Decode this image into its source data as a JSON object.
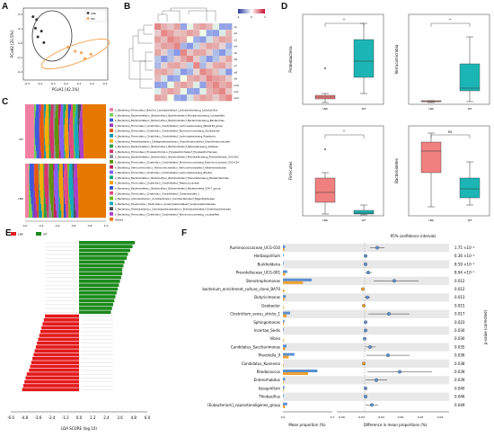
{
  "panels": {
    "a": "A",
    "b": "B",
    "c": "C",
    "d": "D",
    "e": "E",
    "f": "F"
  },
  "panel_a": {
    "xlabel": "PCoA1 [42.1%]",
    "ylabel": "PCoA2 [20.5%]",
    "legend": [
      "LNK",
      "WT"
    ],
    "xticks": [
      "-0.3",
      "-0.2",
      "-0.1",
      "0.0",
      "0.1",
      "0.2",
      "0.3"
    ],
    "yticks": [
      "0.2",
      "0.1",
      "0.0",
      "-0.1",
      "-0.2"
    ],
    "lnk_points": [
      [
        -0.27,
        0.19
      ],
      [
        -0.24,
        0.17
      ],
      [
        -0.25,
        0.11
      ],
      [
        -0.2,
        0.09
      ],
      [
        -0.23,
        0.05
      ],
      [
        -0.18,
        0.01
      ]
    ],
    "wt_points": [
      [
        0.02,
        -0.02
      ],
      [
        0.08,
        -0.05
      ],
      [
        0.13,
        -0.06
      ],
      [
        0.16,
        -0.1
      ],
      [
        0.21,
        -0.07
      ]
    ]
  },
  "panel_b": {
    "colorbar_ticks": [
      "-1",
      "0",
      "1"
    ],
    "row_labels": [
      "s1",
      "s2",
      "s3",
      "s4",
      "s5",
      "s6",
      "s7",
      "s8",
      "s9",
      "s10",
      "s11",
      "s12"
    ]
  },
  "panel_c": {
    "group_labels": [
      "WT",
      "LNK"
    ],
    "xticks": [
      "0.0",
      "0.2",
      "0.4",
      "0.6",
      "0.8",
      "1.0"
    ],
    "legend_items": [
      "k_Bacteria;p_Firmicutes;c_Bacilli;o_Lactobacillales;f_Lactobacillaceae;g_Lactobacillus",
      "k_Bacteria;p_Bacteroidetes;c_Bacteroidia;o_Bacteroidales;f_Muribaculaceae;g_unclassified",
      "k_Bacteria;p_Bacteroidetes;c_Bacteroidia;o_Bacteroidales;f_Bacteroidaceae;g_Bacteroides",
      "k_Bacteria;p_Firmicutes;c_Clostridia;o_Clostridiales;f_Lachnospiraceae;g_NK4A136_group",
      "k_Bacteria;p_Firmicutes;c_Clostridia;o_Clostridiales;f_Ruminococcaceae;g_Oscillibacter",
      "k_Bacteria;p_Firmicutes;c_Clostridia;o_Clostridiales;f_Lachnospiraceae;g_Roseburia",
      "k_Bacteria;p_Proteobacteria;c_Deltaproteobacteria;o_Desulfovibrionales;f_Desulfovibrionaceae",
      "k_Bacteria;p_Bacteroidetes;c_Bacteroidia;o_Bacteroidales;f_Rikenellaceae;g_Alistipes",
      "k_Bacteria;p_Firmicutes;c_Erysipelotrichia;o_Erysipelotrichales;f_Erysipelotrichaceae",
      "k_Bacteria;p_Bacteroidetes;c_Bacteroidia;o_Bacteroidales;f_Prevotellaceae;g_Prevotellaceae_UCG-001",
      "k_Bacteria;p_Firmicutes;c_Clostridia;o_Clostridiales;f_Ruminococcaceae;g_Ruminococcaceae_UCG-014",
      "k_Bacteria;p_Verrucomicrobia;c_Verrucomicrobiae;o_Verrucomicrobiales;f_Akkermansiaceae",
      "k_Bacteria;p_Firmicutes;c_Clostridia;o_Clostridiales;f_Lachnospiraceae;g_Blautia",
      "k_Bacteria;p_Bacteroidetes;c_Bacteroidia;o_Bacteroidales;f_Tannerellaceae;g_Parabacteroides",
      "k_Bacteria;p_Firmicutes;c_Clostridia;o_Clostridiales;f_Peptococcaceae",
      "k_Bacteria;p_Bacteroidetes;c_Bacteroidia;o_Bacteroidales;f_Bacteroidales_S24-7_group",
      "k_Bacteria;p_Firmicutes;c_Clostridia;o_Clostridiales;f_Clostridiaceae_1",
      "k_Bacteria;p_Actinobacteria;c_Coriobacteriia;o_Coriobacteriales;f_Eggerthellaceae",
      "k_Bacteria;p_Tenericutes;c_Mollicutes;o_Anaeroplasmatales;f_Anaeroplasmataceae",
      "k_Bacteria;p_Proteobacteria;c_Gammaproteobacteria;o_Enterobacteriales;f_Enterobacteriaceae",
      "k_Bacteria;p_Firmicutes;c_Clostridia;o_Clostridiales;f_Ruminococcaceae;g_unclassified",
      "Others"
    ]
  },
  "panel_d": {
    "plots": [
      {
        "ylabel": "Proteobacteria",
        "sig": "*",
        "groups": [
          "LNK",
          "WT"
        ]
      },
      {
        "ylabel": "Verrucomicrobia",
        "sig": "*",
        "groups": [
          "LNK",
          "WT"
        ]
      },
      {
        "ylabel": "Firmicutes",
        "sig": "*",
        "groups": [
          "LNK",
          "WT"
        ]
      },
      {
        "ylabel": "Bacteroidetes",
        "sig": "ns",
        "groups": [
          "LNK",
          "WT"
        ]
      }
    ]
  },
  "panel_e": {
    "legend": [
      "LNK",
      "WT"
    ],
    "xlabel": "LDA SCORE (log 10)",
    "xticks": [
      "-6.0",
      "-4.8",
      "-3.6",
      "-2.4",
      "-1.2",
      "0.0",
      "1.2",
      "2.4",
      "3.6",
      "4.8",
      "6.0"
    ]
  },
  "panel_f": {
    "ci_title": "95% confidence intervals",
    "left_xlabel": "Mean proportion (%)",
    "right_xlabel": "Difference in mean proportions (%)",
    "right_ylabel": "p-value (corrected)",
    "left_xticks": [
      "0.0",
      "0.7"
    ],
    "right_xticks": [
      "-0.06",
      "-0.04",
      "-0.02",
      "0.00",
      "0.02",
      "0.04"
    ],
    "rows": [
      {
        "name": "Ruminococcaceae_UCG-010",
        "p": "1.75",
        "exp": "×10⁻³"
      },
      {
        "name": "Herbaspirillum",
        "p": "6.36",
        "exp": "×10⁻³"
      },
      {
        "name": "Burkholderia",
        "p": "8.59",
        "exp": "×10⁻³"
      },
      {
        "name": "Prevotellaceae_UCG-001",
        "p": "8.94",
        "exp": "×10⁻³"
      },
      {
        "name": "Stenotrophomonas",
        "p": "0.012",
        "exp": ""
      },
      {
        "name": "bacterium_enrichment_culture_clone_BA70",
        "p": "0.012",
        "exp": ""
      },
      {
        "name": "Butyricimonas",
        "p": "0.013",
        "exp": ""
      },
      {
        "name": "Geobacter",
        "p": "0.015",
        "exp": ""
      },
      {
        "name": "Clostridium_sensu_stricto_1",
        "p": "0.017",
        "exp": ""
      },
      {
        "name": "Sphingomonas",
        "p": "0.023",
        "exp": ""
      },
      {
        "name": "Incertae_Sedis",
        "p": "0.030",
        "exp": ""
      },
      {
        "name": "Vibrio",
        "p": "0.030",
        "exp": ""
      },
      {
        "name": "Candidatus_Saccharimonas",
        "p": "0.035",
        "exp": ""
      },
      {
        "name": "Prevotella_9",
        "p": "0.036",
        "exp": ""
      },
      {
        "name": "Candidatus_Kuenenia",
        "p": "0.038",
        "exp": ""
      },
      {
        "name": "Rhodococcus",
        "p": "0.039",
        "exp": ""
      },
      {
        "name": "Enterorhabdus",
        "p": "0.039",
        "exp": ""
      },
      {
        "name": "Azospirillum",
        "p": "0.040",
        "exp": ""
      },
      {
        "name": "Thiobacillus",
        "p": "0.046",
        "exp": ""
      },
      {
        "name": "[Eubacterium]_coprostanoligenes_group",
        "p": "0.049",
        "exp": ""
      }
    ]
  },
  "colors": {
    "lnk": "#e31a1c",
    "wt": "#1b8a1b",
    "pcoa_wt": "#f5a04a",
    "box_red": "#f08080",
    "box_teal": "#1cb5b5",
    "ci_orange": "#f0a030",
    "ci_blue": "#5b8fd0"
  }
}
